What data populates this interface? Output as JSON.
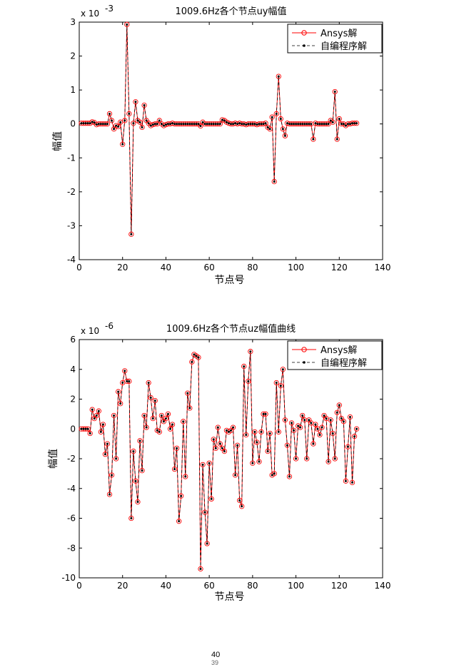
{
  "chart_data": [
    {
      "type": "line",
      "title": "1009.6Hz各个节点uy幅值",
      "xlabel": "节点号",
      "ylabel": "幅值",
      "exponent_label": "x 10",
      "exponent": "-3",
      "xlim": [
        0,
        140
      ],
      "ylim": [
        -4,
        3
      ],
      "xticks": [
        0,
        20,
        40,
        60,
        80,
        100,
        120,
        140
      ],
      "yticks": [
        -4,
        -3,
        -2,
        -1,
        0,
        1,
        2,
        3
      ],
      "legend": {
        "position": "top-right",
        "entries": [
          "Ansys解",
          "自编程序解"
        ]
      },
      "x": [
        1,
        2,
        3,
        4,
        5,
        6,
        7,
        8,
        9,
        10,
        11,
        12,
        13,
        14,
        15,
        16,
        17,
        18,
        19,
        20,
        21,
        22,
        23,
        24,
        25,
        26,
        27,
        28,
        29,
        30,
        31,
        32,
        33,
        34,
        35,
        36,
        37,
        38,
        39,
        40,
        41,
        42,
        43,
        44,
        45,
        46,
        47,
        48,
        49,
        50,
        51,
        52,
        53,
        54,
        55,
        56,
        57,
        58,
        59,
        60,
        61,
        62,
        63,
        64,
        65,
        66,
        67,
        68,
        69,
        70,
        71,
        72,
        73,
        74,
        75,
        76,
        77,
        78,
        79,
        80,
        81,
        82,
        83,
        84,
        85,
        86,
        87,
        88,
        89,
        90,
        91,
        92,
        93,
        94,
        95,
        96,
        97,
        98,
        99,
        100,
        101,
        102,
        103,
        104,
        105,
        106,
        107,
        108,
        109,
        110,
        111,
        112,
        113,
        114,
        115,
        116,
        117,
        118,
        119,
        120,
        121,
        122,
        123,
        124,
        125,
        126,
        127,
        128
      ],
      "series": [
        {
          "name": "Ansys解",
          "color": "#ff0000",
          "values": [
            0.02,
            0.02,
            0.02,
            0.02,
            0.02,
            0.06,
            0.04,
            -0.02,
            0.0,
            0.0,
            0.0,
            0.0,
            0.0,
            0.3,
            0.1,
            -0.15,
            -0.05,
            -0.08,
            0.05,
            -0.6,
            0.1,
            2.93,
            0.3,
            -3.25,
            0.02,
            0.65,
            0.1,
            0.05,
            -0.1,
            0.55,
            0.1,
            0.02,
            -0.05,
            -0.02,
            0.0,
            0.0,
            0.1,
            0.0,
            -0.05,
            -0.02,
            0.0,
            0.0,
            0.02,
            0.0,
            0.0,
            0.0,
            0.0,
            0.0,
            0.0,
            0.0,
            0.0,
            0.0,
            0.0,
            0.0,
            0.0,
            -0.06,
            0.05,
            0.0,
            0.0,
            0.0,
            0.0,
            0.0,
            0.0,
            0.0,
            0.0,
            0.12,
            0.1,
            0.05,
            0.02,
            0.0,
            0.0,
            0.02,
            0.0,
            0.02,
            0.0,
            0.0,
            -0.02,
            0.0,
            0.0,
            0.0,
            0.0,
            -0.02,
            0.0,
            0.0,
            0.0,
            0.02,
            -0.1,
            -0.15,
            0.2,
            -1.7,
            0.3,
            1.4,
            0.15,
            -0.15,
            -0.35,
            0.02,
            0.0,
            0.0,
            0.0,
            0.0,
            0.0,
            0.0,
            0.0,
            0.0,
            0.0,
            0.0,
            0.0,
            -0.45,
            0.02,
            0.0,
            0.0,
            0.0,
            0.0,
            0.0,
            0.0,
            0.1,
            0.05,
            0.95,
            -0.45,
            0.15,
            0.0,
            0.0,
            -0.05,
            0.0,
            0.0,
            0.02,
            0.02,
            0.02
          ]
        },
        {
          "name": "自编程序解",
          "color": "#000000",
          "values": [
            0.02,
            0.02,
            0.02,
            0.02,
            0.02,
            0.06,
            0.04,
            -0.02,
            0.0,
            0.0,
            0.0,
            0.0,
            0.0,
            0.3,
            0.1,
            -0.15,
            -0.05,
            -0.08,
            0.05,
            -0.6,
            0.1,
            2.93,
            0.3,
            -3.25,
            0.02,
            0.65,
            0.1,
            0.05,
            -0.1,
            0.55,
            0.1,
            0.02,
            -0.05,
            -0.02,
            0.0,
            0.0,
            0.1,
            0.0,
            -0.05,
            -0.02,
            0.0,
            0.0,
            0.02,
            0.0,
            0.0,
            0.0,
            0.0,
            0.0,
            0.0,
            0.0,
            0.0,
            0.0,
            0.0,
            0.0,
            0.0,
            -0.06,
            0.05,
            0.0,
            0.0,
            0.0,
            0.0,
            0.0,
            0.0,
            0.0,
            0.0,
            0.12,
            0.1,
            0.05,
            0.02,
            0.0,
            0.0,
            0.02,
            0.0,
            0.02,
            0.0,
            0.0,
            -0.02,
            0.0,
            0.0,
            0.0,
            0.0,
            -0.02,
            0.0,
            0.0,
            0.0,
            0.02,
            -0.1,
            -0.15,
            0.2,
            -1.7,
            0.3,
            1.4,
            0.15,
            -0.15,
            -0.35,
            0.02,
            0.0,
            0.0,
            0.0,
            0.0,
            0.0,
            0.0,
            0.0,
            0.0,
            0.0,
            0.0,
            0.0,
            -0.45,
            0.02,
            0.0,
            0.0,
            0.0,
            0.0,
            0.0,
            0.0,
            0.1,
            0.05,
            0.95,
            -0.45,
            0.15,
            0.0,
            0.0,
            -0.05,
            0.0,
            0.0,
            0.02,
            0.02,
            0.02
          ]
        }
      ]
    },
    {
      "type": "line",
      "title": "1009.6Hz各个节点uz幅值曲线",
      "xlabel": "节点号",
      "ylabel": "幅值",
      "exponent_label": "x 10",
      "exponent": "-6",
      "xlim": [
        0,
        140
      ],
      "ylim": [
        -10,
        6
      ],
      "xticks": [
        0,
        20,
        40,
        60,
        80,
        100,
        120,
        140
      ],
      "yticks": [
        -10,
        -8,
        -6,
        -4,
        -2,
        0,
        2,
        4,
        6
      ],
      "legend": {
        "position": "top-right",
        "entries": [
          "Ansys解",
          "自编程序解"
        ]
      },
      "x": [
        1,
        2,
        3,
        4,
        5,
        6,
        7,
        8,
        9,
        10,
        11,
        12,
        13,
        14,
        15,
        16,
        17,
        18,
        19,
        20,
        21,
        22,
        23,
        24,
        25,
        26,
        27,
        28,
        29,
        30,
        31,
        32,
        33,
        34,
        35,
        36,
        37,
        38,
        39,
        40,
        41,
        42,
        43,
        44,
        45,
        46,
        47,
        48,
        49,
        50,
        51,
        52,
        53,
        54,
        55,
        56,
        57,
        58,
        59,
        60,
        61,
        62,
        63,
        64,
        65,
        66,
        67,
        68,
        69,
        70,
        71,
        72,
        73,
        74,
        75,
        76,
        77,
        78,
        79,
        80,
        81,
        82,
        83,
        84,
        85,
        86,
        87,
        88,
        89,
        90,
        91,
        92,
        93,
        94,
        95,
        96,
        97,
        98,
        99,
        100,
        101,
        102,
        103,
        104,
        105,
        106,
        107,
        108,
        109,
        110,
        111,
        112,
        113,
        114,
        115,
        116,
        117,
        118,
        119,
        120,
        121,
        122,
        123,
        124,
        125,
        126,
        127,
        128
      ],
      "series": [
        {
          "name": "Ansys解",
          "color": "#ff0000",
          "values": [
            0.0,
            0.0,
            0.0,
            0.0,
            -0.3,
            1.3,
            0.7,
            0.9,
            1.2,
            -0.2,
            0.3,
            -1.7,
            -1.0,
            -4.4,
            -3.1,
            0.9,
            -2.0,
            2.5,
            1.7,
            3.1,
            3.9,
            3.2,
            3.2,
            -6.0,
            -1.5,
            -3.5,
            -4.9,
            -0.8,
            -2.8,
            0.9,
            0.1,
            3.1,
            2.1,
            0.7,
            1.9,
            -0.1,
            -0.2,
            0.9,
            0.5,
            0.7,
            1.0,
            0.0,
            0.3,
            -2.7,
            -1.3,
            -6.2,
            -4.5,
            0.5,
            -3.2,
            2.4,
            1.4,
            4.5,
            5.0,
            4.9,
            4.8,
            -9.4,
            -2.4,
            -5.6,
            -7.7,
            -2.3,
            -4.7,
            -0.7,
            -1.3,
            0.1,
            -1.0,
            -1.3,
            -1.5,
            -0.1,
            -0.2,
            -0.1,
            0.1,
            -3.1,
            -1.1,
            -4.8,
            -5.2,
            4.2,
            -0.4,
            3.2,
            5.2,
            -2.3,
            -0.2,
            -0.9,
            -2.2,
            -0.2,
            1.0,
            1.0,
            -1.5,
            -0.3,
            -3.1,
            -3.0,
            3.1,
            -0.2,
            2.9,
            4.0,
            0.6,
            -1.1,
            -3.2,
            0.4,
            -0.1,
            -2.0,
            0.2,
            0.1,
            0.9,
            0.6,
            -2.0,
            0.6,
            0.4,
            -1.0,
            0.3,
            0.0,
            -0.4,
            0.1,
            0.9,
            0.7,
            -2.2,
            0.6,
            -0.3,
            -2.0,
            1.1,
            1.6,
            0.7,
            0.5,
            -3.5,
            -1.2,
            0.8,
            -3.6,
            -0.5,
            0.0
          ]
        },
        {
          "name": "自编程序解",
          "color": "#000000",
          "values": [
            0.0,
            0.0,
            0.0,
            0.0,
            -0.3,
            1.3,
            0.7,
            0.9,
            1.2,
            -0.2,
            0.3,
            -1.7,
            -1.0,
            -4.4,
            -3.1,
            0.9,
            -2.0,
            2.5,
            1.7,
            3.1,
            3.9,
            3.2,
            3.2,
            -6.0,
            -1.5,
            -3.5,
            -4.9,
            -0.8,
            -2.8,
            0.9,
            0.1,
            3.1,
            2.1,
            0.7,
            1.9,
            -0.1,
            -0.2,
            0.9,
            0.5,
            0.7,
            1.0,
            0.0,
            0.3,
            -2.7,
            -1.3,
            -6.2,
            -4.5,
            0.5,
            -3.2,
            2.4,
            1.4,
            4.5,
            5.0,
            4.9,
            4.8,
            -9.4,
            -2.4,
            -5.6,
            -7.7,
            -2.3,
            -4.7,
            -0.7,
            -1.3,
            0.1,
            -1.0,
            -1.3,
            -1.5,
            -0.1,
            -0.2,
            -0.1,
            0.1,
            -3.1,
            -1.1,
            -4.8,
            -5.2,
            4.2,
            -0.4,
            3.2,
            5.2,
            -2.3,
            -0.2,
            -0.9,
            -2.2,
            -0.2,
            1.0,
            1.0,
            -1.5,
            -0.3,
            -3.1,
            -3.0,
            3.1,
            -0.2,
            2.9,
            4.0,
            0.6,
            -1.1,
            -3.2,
            0.4,
            -0.1,
            -2.0,
            0.2,
            0.1,
            0.9,
            0.6,
            -2.0,
            0.6,
            0.4,
            -1.0,
            0.3,
            0.0,
            -0.4,
            0.1,
            0.9,
            0.7,
            -2.2,
            0.6,
            -0.3,
            -2.0,
            1.1,
            1.6,
            0.7,
            0.5,
            -3.5,
            -1.2,
            0.8,
            -3.6,
            -0.5,
            0.0
          ]
        }
      ]
    }
  ],
  "page_numbers": [
    "40",
    "39"
  ]
}
